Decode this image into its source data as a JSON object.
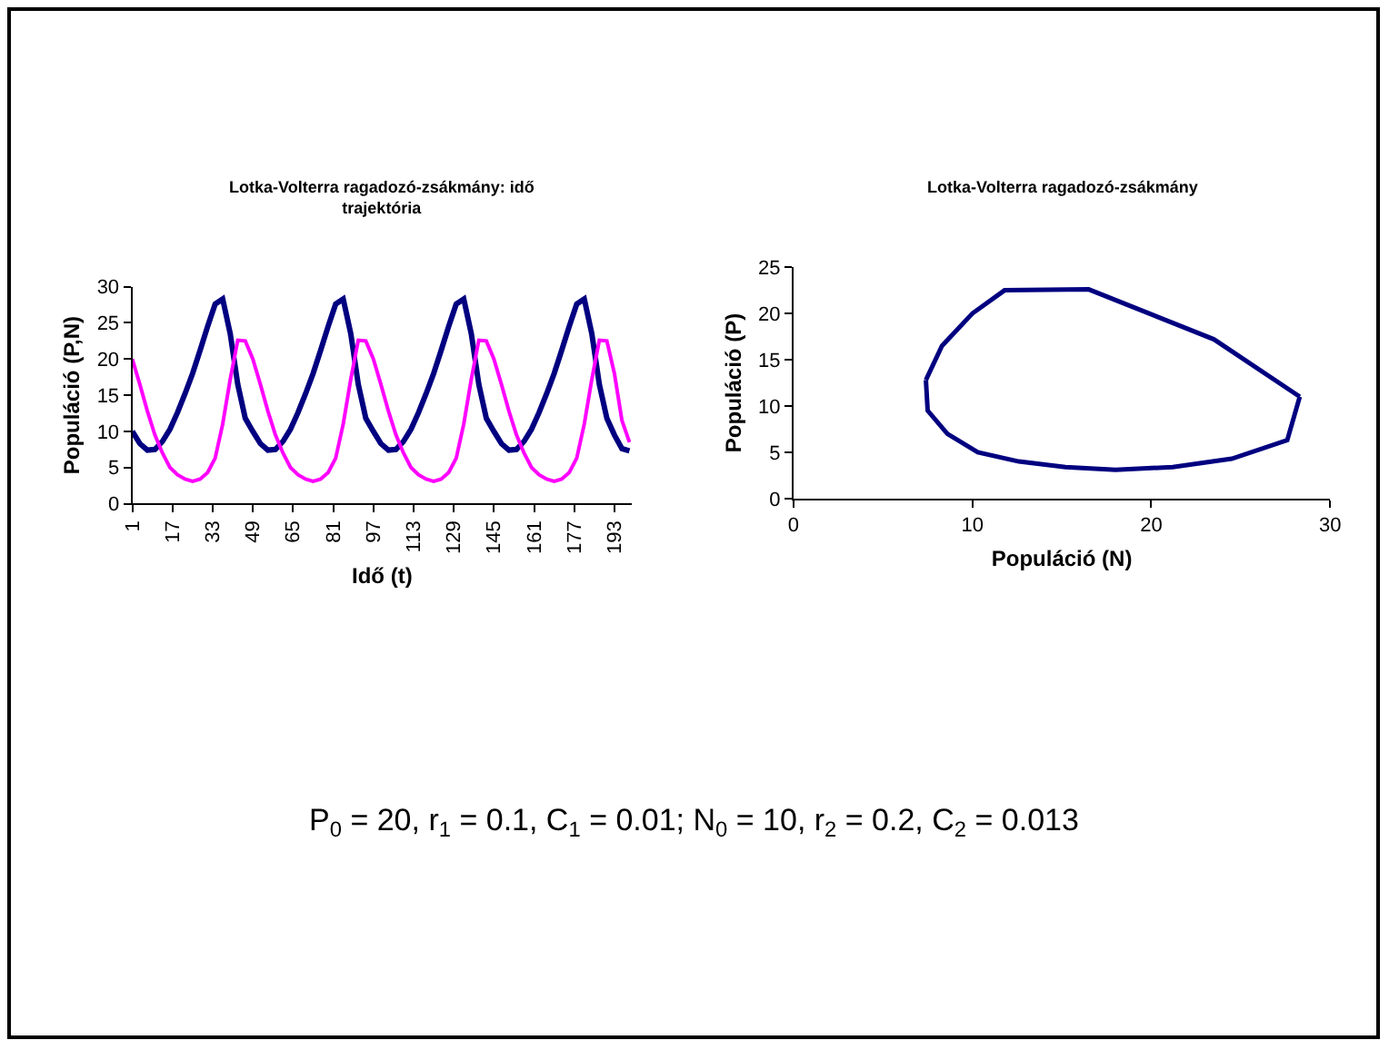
{
  "chart_data": [
    {
      "type": "line",
      "title": "Lotka-Volterra ragadozó-zsákmány: idő trajektória",
      "xlabel": "Idő (t)",
      "ylabel": "Populáció (P,N)",
      "x": [
        1,
        4,
        7,
        10,
        13,
        16,
        19,
        22,
        25,
        28,
        31,
        34,
        37,
        40,
        43,
        46,
        49,
        52,
        55,
        58,
        61,
        64,
        67,
        70,
        73,
        76,
        79,
        82,
        85,
        88,
        91,
        94,
        97,
        100,
        103,
        106,
        109,
        112,
        115,
        118,
        121,
        124,
        127,
        130,
        133,
        136,
        139,
        142,
        145,
        148,
        151,
        154,
        157,
        160,
        163,
        166,
        169,
        172,
        175,
        178,
        181,
        184,
        187,
        190,
        193,
        196,
        199
      ],
      "series": [
        {
          "color": "#000080",
          "values": [
            10,
            8.3,
            7.4,
            7.5,
            8.6,
            10.3,
            12.6,
            15.2,
            18,
            21.2,
            24.5,
            27.6,
            28.3,
            23.5,
            16.5,
            11.8,
            10,
            8.3,
            7.4,
            7.5,
            8.6,
            10.3,
            12.6,
            15.2,
            18,
            21.2,
            24.5,
            27.6,
            28.3,
            23.5,
            16.5,
            11.8,
            10,
            8.3,
            7.4,
            7.5,
            8.6,
            10.3,
            12.6,
            15.2,
            18,
            21.2,
            24.5,
            27.6,
            28.3,
            23.5,
            16.5,
            11.8,
            10,
            8.3,
            7.4,
            7.5,
            8.6,
            10.3,
            12.6,
            15.2,
            18,
            21.2,
            24.5,
            27.6,
            28.3,
            23.5,
            16.5,
            11.8,
            9.5,
            7.6,
            7.3
          ]
        },
        {
          "color": "#ff00ff",
          "values": [
            20,
            16.5,
            12.8,
            9.5,
            7,
            5,
            4,
            3.4,
            3.1,
            3.4,
            4.3,
            6.3,
            11,
            17.2,
            22.6,
            22.5,
            20,
            16.5,
            12.8,
            9.5,
            7,
            5,
            4,
            3.4,
            3.1,
            3.4,
            4.3,
            6.3,
            11,
            17.2,
            22.6,
            22.5,
            20,
            16.5,
            12.8,
            9.5,
            7,
            5,
            4,
            3.4,
            3.1,
            3.4,
            4.3,
            6.3,
            11,
            17.2,
            22.6,
            22.5,
            20,
            16.5,
            12.8,
            9.5,
            7,
            5,
            4,
            3.4,
            3.1,
            3.4,
            4.3,
            6.3,
            11,
            17.2,
            22.6,
            22.5,
            18,
            11.5,
            8.5
          ]
        }
      ],
      "xlim": [
        1,
        200
      ],
      "xticks": [
        1,
        17,
        33,
        49,
        65,
        81,
        97,
        113,
        129,
        145,
        161,
        177,
        193
      ],
      "ylim": [
        0,
        30
      ],
      "yticks": [
        0,
        5,
        10,
        15,
        20,
        25,
        30
      ],
      "marker": "none",
      "line_style": "solid"
    },
    {
      "type": "line",
      "title": "Lotka-Volterra ragadozó-zsákmány",
      "xlabel": "Populáció (N)",
      "ylabel": "Populáció (P)",
      "series": [
        {
          "color": "#000080",
          "x": [
            7.4,
            7.5,
            8.6,
            10.3,
            12.6,
            15.2,
            18,
            21.2,
            24.5,
            27.6,
            28.3
          ],
          "values": [
            12.8,
            9.5,
            7,
            5,
            4,
            3.4,
            3.1,
            3.4,
            4.3,
            6.3,
            11
          ]
        },
        {
          "color": "#000080",
          "x": [
            7.4,
            8.3,
            10,
            11.8,
            16.5,
            23.5,
            28.3
          ],
          "values": [
            12.8,
            16.5,
            20,
            22.5,
            22.6,
            17.2,
            11
          ]
        }
      ],
      "xlim": [
        0,
        30
      ],
      "xticks": [
        0,
        10,
        20,
        30
      ],
      "ylim": [
        0,
        25
      ],
      "yticks": [
        0,
        5,
        10,
        15,
        20,
        25
      ],
      "marker": "none",
      "line_style": "solid",
      "annotations": [
        "P$_{0}$ = 20, r$_{1}$ = 0.1, C$_{1}$ = 0.01; N$_{0}$ = 10, r$_{2}$ = 0.2, C$_{2}$ = 0.013"
      ]
    }
  ]
}
